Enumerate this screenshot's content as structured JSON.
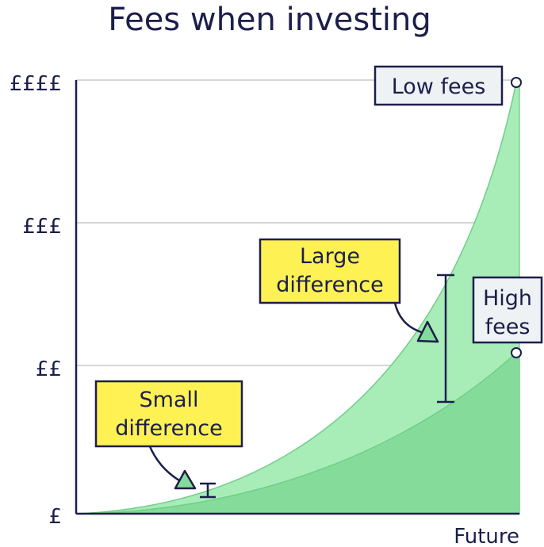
{
  "chart_data": {
    "type": "area",
    "title": "Fees when investing",
    "xlabel": "Future",
    "ylabel": "",
    "y_ticks": [
      "£",
      "££",
      "£££",
      "££££"
    ],
    "grid": true,
    "series": [
      {
        "name": "Low fees",
        "color": "#a8ecb8"
      },
      {
        "name": "High fees",
        "color": "#85dc9a"
      }
    ],
    "annotations": {
      "small": {
        "line1": "Small",
        "line2": "difference"
      },
      "large": {
        "line1": "Large",
        "line2": "difference"
      },
      "high_fees": {
        "line1": "High",
        "line2": "fees"
      }
    }
  },
  "colors": {
    "ink": "#1b1f4a",
    "grid": "#c8c8c8",
    "callout_yellow": "#fef154",
    "label_bg": "#eef2f4",
    "low_fill": "#a8ecb8",
    "high_fill": "#85dc9a",
    "curve_stroke": "#6fcf86"
  }
}
